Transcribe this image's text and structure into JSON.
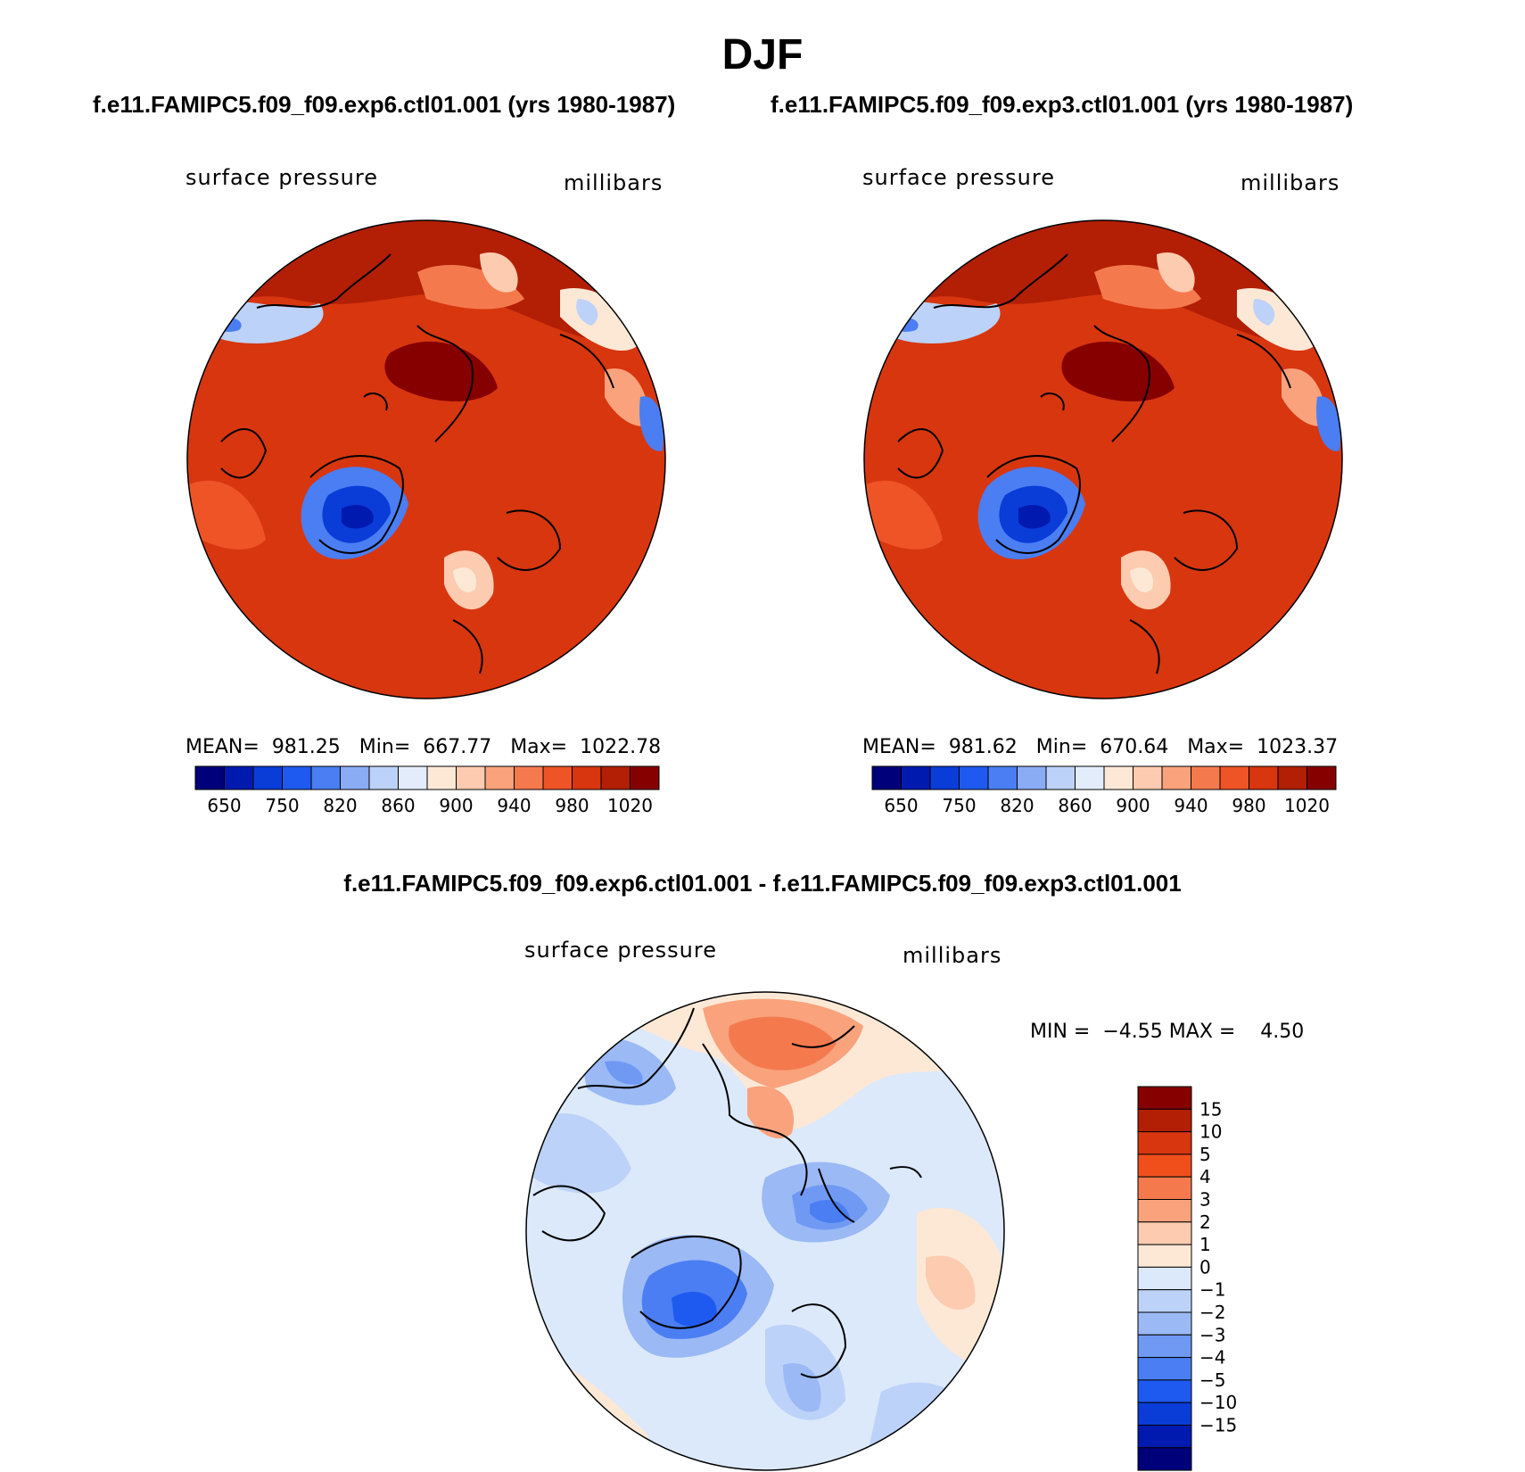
{
  "title": "DJF",
  "panels": [
    {
      "case": "f.e11.FAMIPC5.f09_f09.exp6.ctl01.001 (yrs 1980-1987)",
      "variable": "surface pressure",
      "units": "millibars",
      "stats": {
        "mean": "981.25",
        "min": "667.77",
        "max": "1022.78"
      }
    },
    {
      "case": "f.e11.FAMIPC5.f09_f09.exp3.ctl01.001 (yrs 1980-1987)",
      "variable": "surface pressure",
      "units": "millibars",
      "stats": {
        "mean": "981.62",
        "min": "670.64",
        "max": "1023.37"
      }
    }
  ],
  "abs_colorbar": {
    "colors": [
      "#00007a",
      "#001ab0",
      "#0a3cd8",
      "#1e5af0",
      "#4a7ef2",
      "#8aacf4",
      "#bcd2f8",
      "#e2ecfb",
      "#fde8d6",
      "#fccbb0",
      "#f9a27c",
      "#f47a4e",
      "#ee5426",
      "#d8360f",
      "#b21f05",
      "#860000"
    ],
    "labels": [
      "650",
      "750",
      "820",
      "860",
      "900",
      "940",
      "980",
      "1020"
    ]
  },
  "diff": {
    "title": "f.e11.FAMIPC5.f09_f09.exp6.ctl01.001 - f.e11.FAMIPC5.f09_f09.exp3.ctl01.001",
    "variable": "surface pressure",
    "units": "millibars",
    "min_label": "MIN =",
    "min_value": "−4.55",
    "max_label": "MAX =",
    "max_value": "4.50",
    "colorbar": {
      "colors": [
        "#860000",
        "#b21f05",
        "#d8360f",
        "#f04f1c",
        "#f47a4e",
        "#f9a27c",
        "#fccbb0",
        "#fde8d6",
        "#dce9fa",
        "#bcd2f8",
        "#9ab9f5",
        "#6f99f3",
        "#4a7ef2",
        "#1e5af0",
        "#0a3cd8",
        "#001ab0",
        "#00007a"
      ],
      "labels": [
        "15",
        "10",
        "5",
        "4",
        "3",
        "2",
        "1",
        "0",
        "−1",
        "−2",
        "−3",
        "−4",
        "−5",
        "−10",
        "−15"
      ]
    }
  }
}
